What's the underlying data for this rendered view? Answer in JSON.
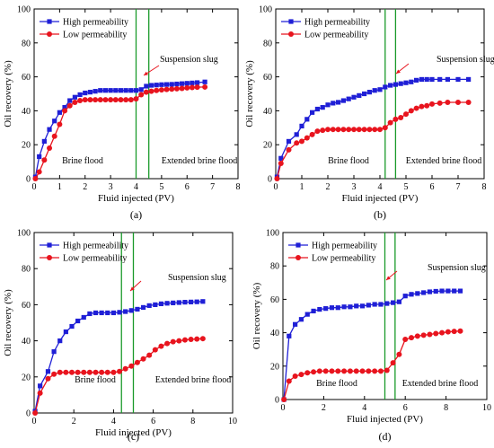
{
  "colors": {
    "high": "#1f1fd6",
    "low": "#e8141e",
    "slug_lines": "#1a9a2a",
    "axis": "#000000"
  },
  "chart_data": [
    {
      "type": "line",
      "panel_label": "(a)",
      "xlabel": "Fluid injected (PV)",
      "ylabel": "Oil recovery (%)",
      "xlim": [
        0,
        8
      ],
      "ylim": [
        0,
        100
      ],
      "xticks": [
        0,
        1,
        2,
        3,
        4,
        5,
        6,
        7,
        8
      ],
      "yticks": [
        0,
        20,
        40,
        60,
        80,
        100
      ],
      "legend": "top-left",
      "slug_lines_x": [
        4.0,
        4.5
      ],
      "annotations": {
        "suspension": "Suspension slug",
        "brine": "Brine flood",
        "extended": "Extended brine flood"
      },
      "series": [
        {
          "name": "High permeability",
          "marker": "square",
          "x": [
            0.05,
            0.2,
            0.4,
            0.6,
            0.8,
            1.0,
            1.2,
            1.4,
            1.6,
            1.8,
            2.0,
            2.2,
            2.4,
            2.6,
            2.8,
            3.0,
            3.2,
            3.4,
            3.6,
            3.8,
            4.0,
            4.2,
            4.4,
            4.6,
            4.8,
            5.0,
            5.2,
            5.4,
            5.6,
            5.8,
            6.0,
            6.2,
            6.4,
            6.7
          ],
          "y": [
            1,
            13,
            22,
            29,
            34,
            39,
            42,
            46,
            48,
            49.5,
            50.5,
            51,
            51.5,
            52,
            52,
            52,
            52,
            52,
            52,
            52,
            52,
            52.5,
            54.5,
            55,
            55.2,
            55.4,
            55.5,
            55.6,
            55.8,
            56,
            56.2,
            56.4,
            56.6,
            57
          ]
        },
        {
          "name": "Low permeability",
          "marker": "circle",
          "x": [
            0.05,
            0.2,
            0.4,
            0.6,
            0.8,
            1.0,
            1.2,
            1.4,
            1.6,
            1.8,
            2.0,
            2.2,
            2.4,
            2.6,
            2.8,
            3.0,
            3.2,
            3.4,
            3.6,
            3.8,
            4.0,
            4.2,
            4.4,
            4.6,
            4.8,
            5.0,
            5.2,
            5.4,
            5.6,
            5.8,
            6.0,
            6.2,
            6.4,
            6.7
          ],
          "y": [
            0,
            4,
            11,
            18,
            25,
            32,
            40,
            43,
            45,
            46,
            46.5,
            46.5,
            46.5,
            46.5,
            46.5,
            46.5,
            46.5,
            46.5,
            46.5,
            46.5,
            47,
            49.5,
            51,
            51.5,
            52,
            52.3,
            52.6,
            52.8,
            53,
            53.2,
            53.5,
            53.7,
            53.9,
            54
          ]
        }
      ]
    },
    {
      "type": "line",
      "panel_label": "(b)",
      "xlabel": "Fluid injected (PV)",
      "ylabel": "Oil recovery (%)",
      "xlim": [
        0,
        8
      ],
      "ylim": [
        0,
        100
      ],
      "xticks": [
        0,
        1,
        2,
        3,
        4,
        5,
        6,
        7,
        8
      ],
      "yticks": [
        0,
        20,
        40,
        60,
        80,
        100
      ],
      "legend": "top-left",
      "slug_lines_x": [
        4.2,
        4.6
      ],
      "annotations": {
        "suspension": "Suspension slug",
        "brine": "Brine flood",
        "extended": "Extended brine flood"
      },
      "series": [
        {
          "name": "High permeability",
          "marker": "square",
          "x": [
            0.05,
            0.2,
            0.5,
            0.8,
            1.0,
            1.2,
            1.4,
            1.6,
            1.8,
            2.0,
            2.2,
            2.4,
            2.6,
            2.8,
            3.0,
            3.2,
            3.4,
            3.6,
            3.8,
            4.0,
            4.2,
            4.4,
            4.6,
            4.8,
            5.0,
            5.2,
            5.4,
            5.6,
            5.8,
            6.0,
            6.3,
            6.6,
            7.0,
            7.4
          ],
          "y": [
            1,
            12,
            22,
            26,
            31,
            35,
            39,
            41,
            42,
            43.5,
            44.5,
            45,
            46,
            47,
            48,
            49,
            50,
            51,
            52,
            52.5,
            54,
            55,
            55.5,
            56,
            56.5,
            57,
            58,
            58.5,
            58.5,
            58.5,
            58.5,
            58.5,
            58.5,
            58.5
          ]
        },
        {
          "name": "Low permeability",
          "marker": "circle",
          "x": [
            0.05,
            0.2,
            0.5,
            0.8,
            1.0,
            1.2,
            1.4,
            1.6,
            1.8,
            2.0,
            2.2,
            2.4,
            2.6,
            2.8,
            3.0,
            3.2,
            3.4,
            3.6,
            3.8,
            4.0,
            4.2,
            4.4,
            4.6,
            4.8,
            5.0,
            5.2,
            5.4,
            5.6,
            5.8,
            6.0,
            6.3,
            6.6,
            7.0,
            7.4
          ],
          "y": [
            0,
            9,
            17,
            21,
            22,
            24,
            26,
            28,
            28.5,
            29,
            29,
            29,
            29,
            29,
            29,
            29,
            29,
            29,
            29,
            29,
            30,
            33,
            35,
            36,
            38,
            40,
            41.5,
            42.5,
            43,
            44,
            44.5,
            45,
            45,
            45
          ]
        }
      ]
    },
    {
      "type": "line",
      "panel_label": "(c)",
      "xlabel": "Fluid injected (PV)",
      "ylabel": "Oil recovery (%)",
      "xlim": [
        0,
        10
      ],
      "ylim": [
        0,
        100
      ],
      "xticks": [
        0,
        2,
        4,
        6,
        8,
        10
      ],
      "yticks": [
        0,
        20,
        40,
        60,
        80,
        100
      ],
      "legend": "top-left",
      "slug_lines_x": [
        4.4,
        5.0
      ],
      "annotations": {
        "suspension": "Suspension slug",
        "brine": "Brine flood",
        "extended": "Extended brine flood"
      },
      "series": [
        {
          "name": "High permeability",
          "marker": "square",
          "x": [
            0.05,
            0.3,
            0.7,
            1.0,
            1.3,
            1.6,
            1.9,
            2.2,
            2.5,
            2.8,
            3.1,
            3.4,
            3.7,
            4.0,
            4.3,
            4.6,
            4.9,
            5.2,
            5.5,
            5.8,
            6.1,
            6.4,
            6.7,
            7.0,
            7.3,
            7.6,
            7.9,
            8.2,
            8.5
          ],
          "y": [
            1,
            15,
            23,
            34,
            40,
            45,
            48,
            51,
            53,
            55,
            55.5,
            55.5,
            55.5,
            55.5,
            55.8,
            56.2,
            56.8,
            57.5,
            58.5,
            59.5,
            60,
            60.5,
            60.8,
            61,
            61.2,
            61.4,
            61.5,
            61.6,
            61.8
          ]
        },
        {
          "name": "Low permeability",
          "marker": "circle",
          "x": [
            0.05,
            0.3,
            0.7,
            1.0,
            1.3,
            1.6,
            1.9,
            2.2,
            2.5,
            2.8,
            3.1,
            3.4,
            3.7,
            4.0,
            4.3,
            4.6,
            4.9,
            5.2,
            5.5,
            5.8,
            6.1,
            6.4,
            6.7,
            7.0,
            7.3,
            7.6,
            7.9,
            8.2,
            8.5
          ],
          "y": [
            0,
            11,
            19,
            21.5,
            22.5,
            22.5,
            22.5,
            22.5,
            22.5,
            22.5,
            22.5,
            22.5,
            22.5,
            22.5,
            23,
            24.5,
            26,
            28,
            30,
            32,
            35,
            37,
            38.5,
            39.5,
            40,
            40.5,
            40.8,
            41,
            41.2
          ]
        }
      ]
    },
    {
      "type": "line",
      "panel_label": "(d)",
      "xlabel": "Fluid injected (PV)",
      "ylabel": "Oil recovery (%)",
      "xlim": [
        0,
        10
      ],
      "ylim": [
        0,
        100
      ],
      "xticks": [
        0,
        2,
        4,
        6,
        8,
        10
      ],
      "yticks": [
        0,
        20,
        40,
        60,
        80,
        100
      ],
      "legend": "top-left",
      "slug_lines_x": [
        5.0,
        5.5
      ],
      "annotations": {
        "suspension": "Suspension slug",
        "brine": "Brine flood",
        "extended": "Extended brine flood"
      },
      "series": [
        {
          "name": "High permeability",
          "marker": "square",
          "x": [
            0.05,
            0.3,
            0.6,
            0.9,
            1.2,
            1.5,
            1.8,
            2.1,
            2.4,
            2.7,
            3.0,
            3.3,
            3.6,
            3.9,
            4.2,
            4.5,
            4.8,
            5.1,
            5.4,
            5.7,
            6.0,
            6.3,
            6.6,
            6.9,
            7.2,
            7.5,
            7.8,
            8.1,
            8.4,
            8.7
          ],
          "y": [
            0,
            38,
            45,
            48,
            51,
            53,
            54,
            54.5,
            55,
            55,
            55.5,
            55.5,
            56,
            56,
            56.5,
            57,
            57,
            57.5,
            58,
            58.5,
            62,
            63,
            63.5,
            64,
            64.5,
            64.8,
            65,
            65,
            65,
            65
          ]
        },
        {
          "name": "Low permeability",
          "marker": "circle",
          "x": [
            0.05,
            0.3,
            0.6,
            0.9,
            1.2,
            1.5,
            1.8,
            2.1,
            2.4,
            2.7,
            3.0,
            3.3,
            3.6,
            3.9,
            4.2,
            4.5,
            4.8,
            5.1,
            5.4,
            5.7,
            6.0,
            6.3,
            6.6,
            6.9,
            7.2,
            7.5,
            7.8,
            8.1,
            8.4,
            8.7
          ],
          "y": [
            0,
            11,
            14,
            15,
            16,
            16.5,
            17,
            17,
            17,
            17,
            17,
            17,
            17,
            17,
            17,
            17,
            17,
            17.5,
            22,
            27,
            36,
            37,
            38,
            38.5,
            39,
            39.5,
            40,
            40.5,
            40.8,
            41
          ]
        }
      ]
    }
  ]
}
